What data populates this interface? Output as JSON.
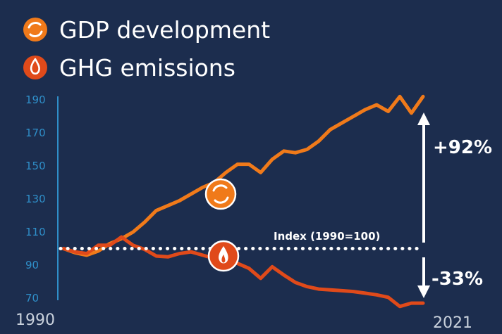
{
  "chart_data": {
    "type": "line",
    "x": [
      1990,
      1991,
      1992,
      1993,
      1994,
      1995,
      1996,
      1997,
      1998,
      1999,
      2000,
      2001,
      2002,
      2003,
      2004,
      2005,
      2006,
      2007,
      2008,
      2009,
      2010,
      2011,
      2012,
      2013,
      2014,
      2015,
      2016,
      2017,
      2018,
      2019,
      2020,
      2021
    ],
    "xlim": [
      1990,
      2021
    ],
    "x_tick_labels": [
      "1990",
      "2021"
    ],
    "ylim": [
      70,
      192
    ],
    "y_ticks": [
      70,
      90,
      110,
      130,
      150,
      170,
      190
    ],
    "series": [
      {
        "name": "GDP development",
        "color": "#f07a1a",
        "icon": "recycle-circle-icon",
        "values": [
          100,
          97.5,
          96,
          98.5,
          103,
          106,
          110,
          116,
          123,
          126,
          129,
          133,
          137,
          140,
          146,
          151,
          151,
          146,
          154,
          159,
          158,
          160,
          165,
          172,
          176,
          180,
          184,
          187,
          183,
          192,
          182,
          192
        ]
      },
      {
        "name": "GHG emissions",
        "color": "#e04a1a",
        "icon": "flame-circle-icon",
        "values": [
          100,
          98,
          97,
          102,
          102,
          107,
          102,
          99.5,
          95.5,
          95,
          97,
          98,
          96,
          94,
          93,
          91,
          88,
          82,
          89,
          84,
          79.5,
          77,
          75.5,
          75,
          74.5,
          74,
          73,
          72,
          70.5,
          65,
          67,
          67
        ]
      }
    ],
    "reference_line": {
      "y": 100,
      "label": "Index (1990=100)"
    },
    "annotations": {
      "gdp_change": "+92%",
      "ghg_change": "-33%"
    },
    "grid": false,
    "legend_position": "top-left"
  }
}
